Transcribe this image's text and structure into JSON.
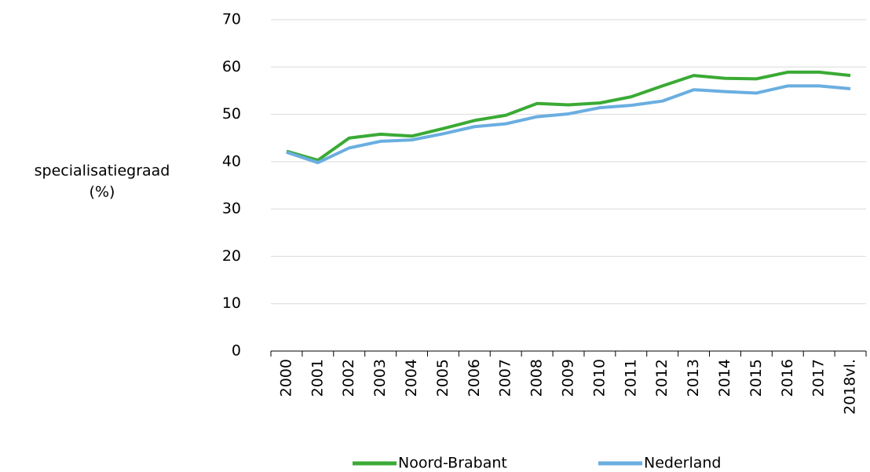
{
  "chart_data": {
    "type": "line",
    "ylabel": [
      "specialisatiegraad",
      "(%)"
    ],
    "categories": [
      "2000",
      "2001",
      "2002",
      "2003",
      "2004",
      "2005",
      "2006",
      "2007",
      "2008",
      "2009",
      "2010",
      "2011",
      "2012",
      "2013",
      "2014",
      "2015",
      "2016",
      "2017",
      "2018vl."
    ],
    "series": [
      {
        "name": "Noord-Brabant",
        "color": "#3aaa35",
        "values": [
          42.2,
          40.3,
          45.0,
          45.8,
          45.4,
          47.0,
          48.7,
          49.8,
          52.3,
          52.0,
          52.4,
          53.7,
          56.0,
          58.2,
          57.6,
          57.5,
          58.9,
          58.9,
          58.2
        ]
      },
      {
        "name": "Nederland",
        "color": "#6aaee0",
        "values": [
          42.0,
          39.8,
          42.9,
          44.3,
          44.6,
          45.9,
          47.4,
          48.0,
          49.5,
          50.1,
          51.4,
          51.9,
          52.8,
          55.2,
          54.8,
          54.5,
          56.0,
          56.0,
          55.4
        ]
      }
    ],
    "ylim": [
      0,
      70
    ],
    "yticks": [
      0,
      10,
      20,
      30,
      40,
      50,
      60,
      70
    ],
    "grid": true,
    "legend": "bottom"
  }
}
